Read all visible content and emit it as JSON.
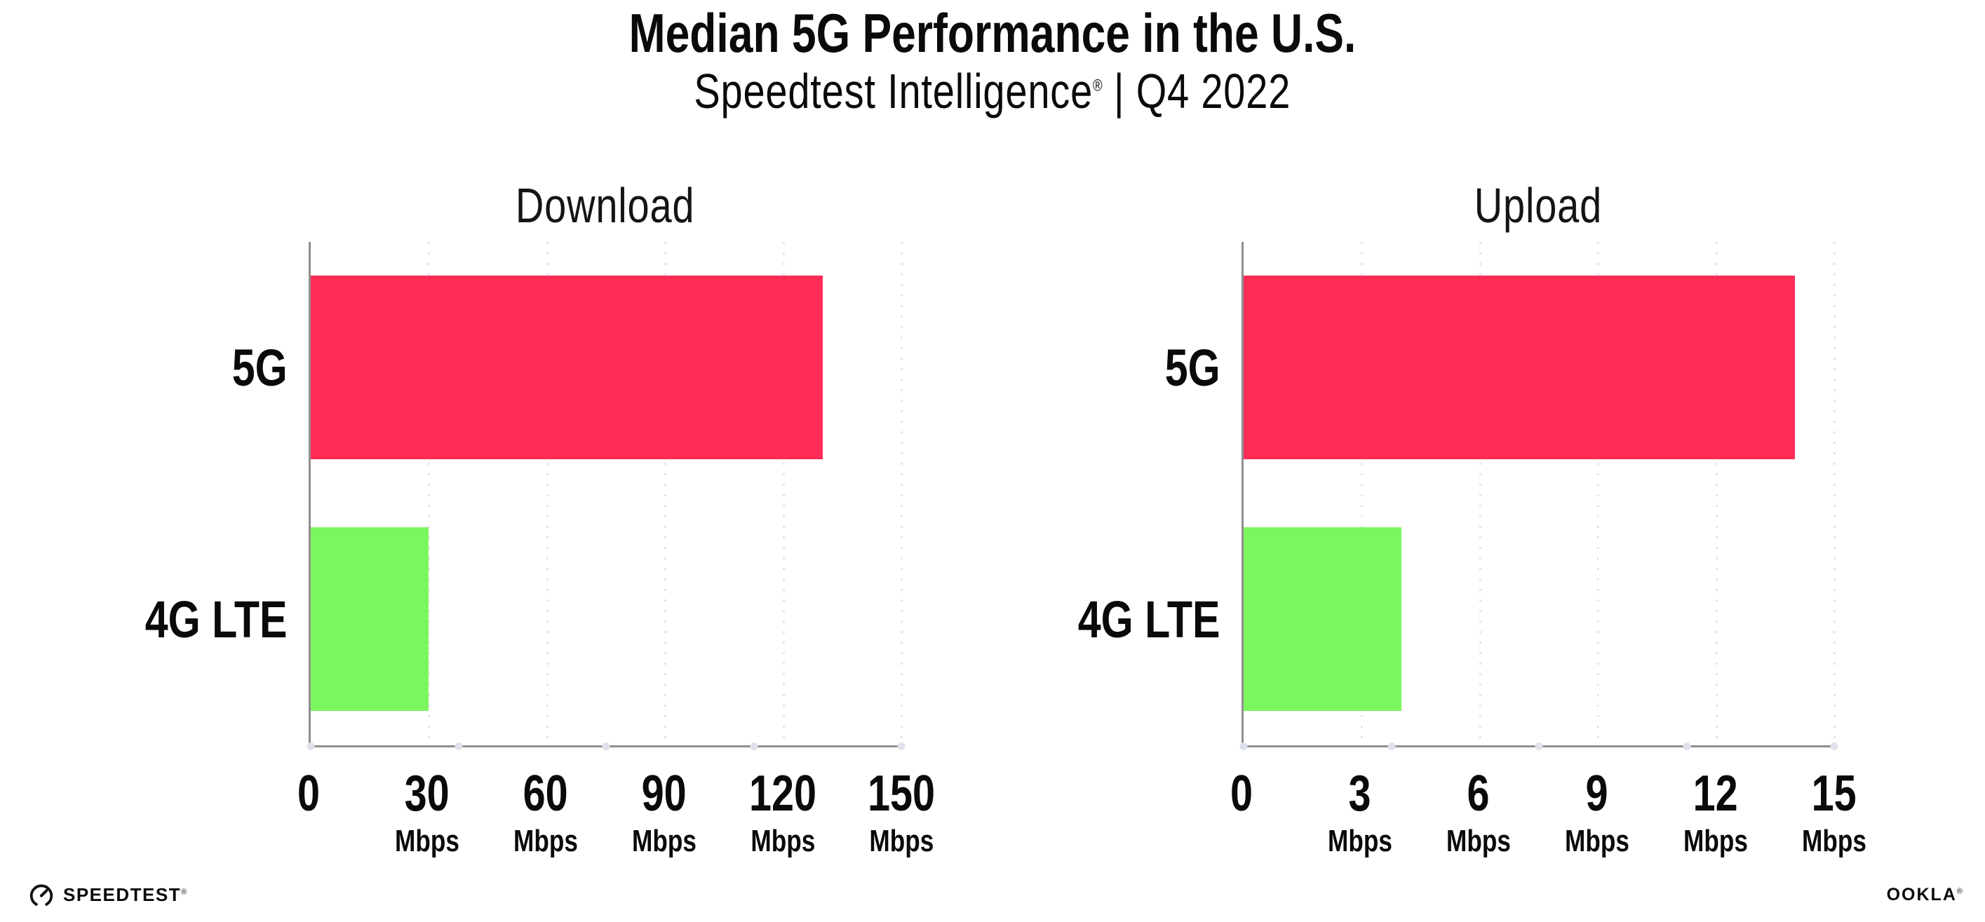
{
  "header": {
    "title": "Median 5G Performance in the U.S.",
    "subtitle_brand": "Speedtest Intelligence",
    "subtitle_mark": "®",
    "subtitle_rest": " | Q4 2022"
  },
  "chart_data": [
    {
      "type": "bar",
      "orientation": "horizontal",
      "title": "Download",
      "categories": [
        "5G",
        "4G LTE"
      ],
      "values": [
        130,
        30
      ],
      "unit": "Mbps",
      "xlim": [
        0,
        150
      ],
      "tick_values": [
        0,
        30,
        60,
        90,
        120,
        150
      ],
      "tick_unit": "Mbps",
      "bar_colors": [
        "#ff2d55",
        "#7cf65f"
      ],
      "grid": "dotted-vertical-at-ticks",
      "legend": "none"
    },
    {
      "type": "bar",
      "orientation": "horizontal",
      "title": "Upload",
      "categories": [
        "5G",
        "4G LTE"
      ],
      "values": [
        14,
        4
      ],
      "unit": "Mbps",
      "xlim": [
        0,
        15
      ],
      "tick_values": [
        0,
        3,
        6,
        9,
        12,
        15
      ],
      "tick_unit": "Mbps",
      "bar_colors": [
        "#ff2d55",
        "#7cf65f"
      ],
      "grid": "dotted-vertical-at-ticks",
      "legend": "none"
    }
  ],
  "footer": {
    "speedtest_wordmark": "SPEEDTEST",
    "speedtest_mark": "®",
    "ookla_wordmark": "OOKLA",
    "ookla_mark": "®"
  },
  "colors": {
    "bar_5g": "#ff2d55",
    "bar_4g_lte": "#7cf65f",
    "axis_line": "#8f8f8f",
    "gridline": "#e1e3ee",
    "text": "#0a0a0a"
  }
}
